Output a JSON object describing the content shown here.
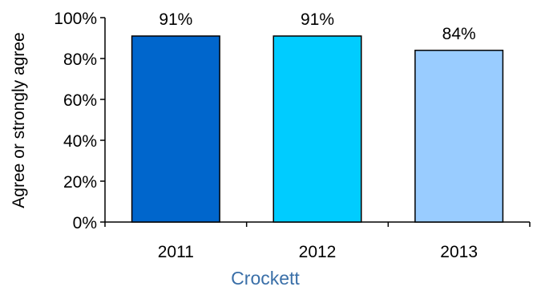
{
  "chart_data": {
    "type": "bar",
    "categories": [
      "2011",
      "2012",
      "2013"
    ],
    "values": [
      91,
      91,
      84
    ],
    "data_labels": [
      "91%",
      "91%",
      "84%"
    ],
    "bar_colors": [
      "#0066cc",
      "#00ccff",
      "#99ccff"
    ],
    "ylabel": "Agree or strongly agree",
    "xlabel": "Crockett",
    "ylim": [
      0,
      100
    ],
    "yticks": [
      0,
      20,
      40,
      60,
      80,
      100
    ],
    "ytick_labels": [
      "0%",
      "20%",
      "40%",
      "60%",
      "80%",
      "100%"
    ],
    "grid": false,
    "legend": "none"
  }
}
